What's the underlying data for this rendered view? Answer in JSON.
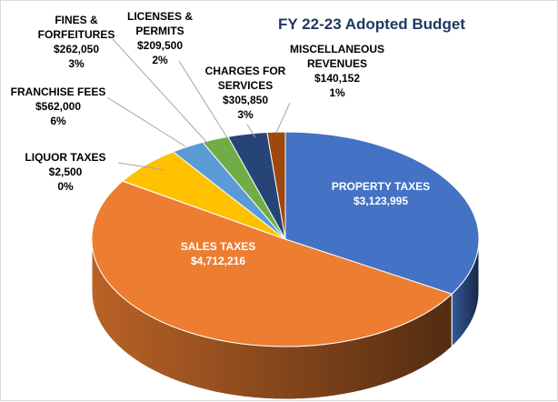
{
  "colors": {
    "property": "#4472C4",
    "sales": "#ED7D31",
    "liquor": "#A5A5A5",
    "franchise": "#FFC000",
    "fines": "#5B9BD5",
    "licenses": "#70AD47",
    "charges": "#264478",
    "misc": "#9E480E",
    "title": "#1F3864",
    "label_dark": "#000000",
    "label_light": "#ffffff"
  },
  "chart_data": {
    "type": "pie",
    "title": "FY 22-23 Adopted Budget",
    "style": "3d-tilted",
    "slices": [
      {
        "key": "property",
        "lines": [
          "PROPERTY TAXES",
          "$3,123,995"
        ],
        "value": 3123995,
        "color": "#4472C4",
        "label_inside": true
      },
      {
        "key": "sales",
        "lines": [
          "SALES TAXES",
          "$4,712,216"
        ],
        "value": 4712216,
        "color": "#ED7D31",
        "label_inside": true
      },
      {
        "key": "liquor",
        "lines": [
          "LIQUOR TAXES",
          "$2,500",
          "0%"
        ],
        "value": 2500,
        "color": "#A5A5A5",
        "label_inside": false
      },
      {
        "key": "franchise",
        "lines": [
          "FRANCHISE FEES",
          "$562,000",
          "6%"
        ],
        "value": 562000,
        "color": "#FFC000",
        "label_inside": false
      },
      {
        "key": "fines",
        "lines": [
          "FINES &",
          "FORFEITURES",
          "$262,050",
          "3%"
        ],
        "value": 262050,
        "color": "#5B9BD5",
        "label_inside": false
      },
      {
        "key": "licenses",
        "lines": [
          "LICENSES &",
          "PERMITS",
          "$209,500",
          "2%"
        ],
        "value": 209500,
        "color": "#70AD47",
        "label_inside": false
      },
      {
        "key": "charges",
        "lines": [
          "CHARGES FOR",
          "SERVICES",
          "$305,850",
          "3%"
        ],
        "value": 305850,
        "color": "#264478",
        "label_inside": false
      },
      {
        "key": "misc",
        "lines": [
          "MISCELLANEOUS",
          "REVENUES",
          "$140,152",
          "1%"
        ],
        "value": 140152,
        "color": "#9E480E",
        "label_inside": false
      }
    ]
  }
}
